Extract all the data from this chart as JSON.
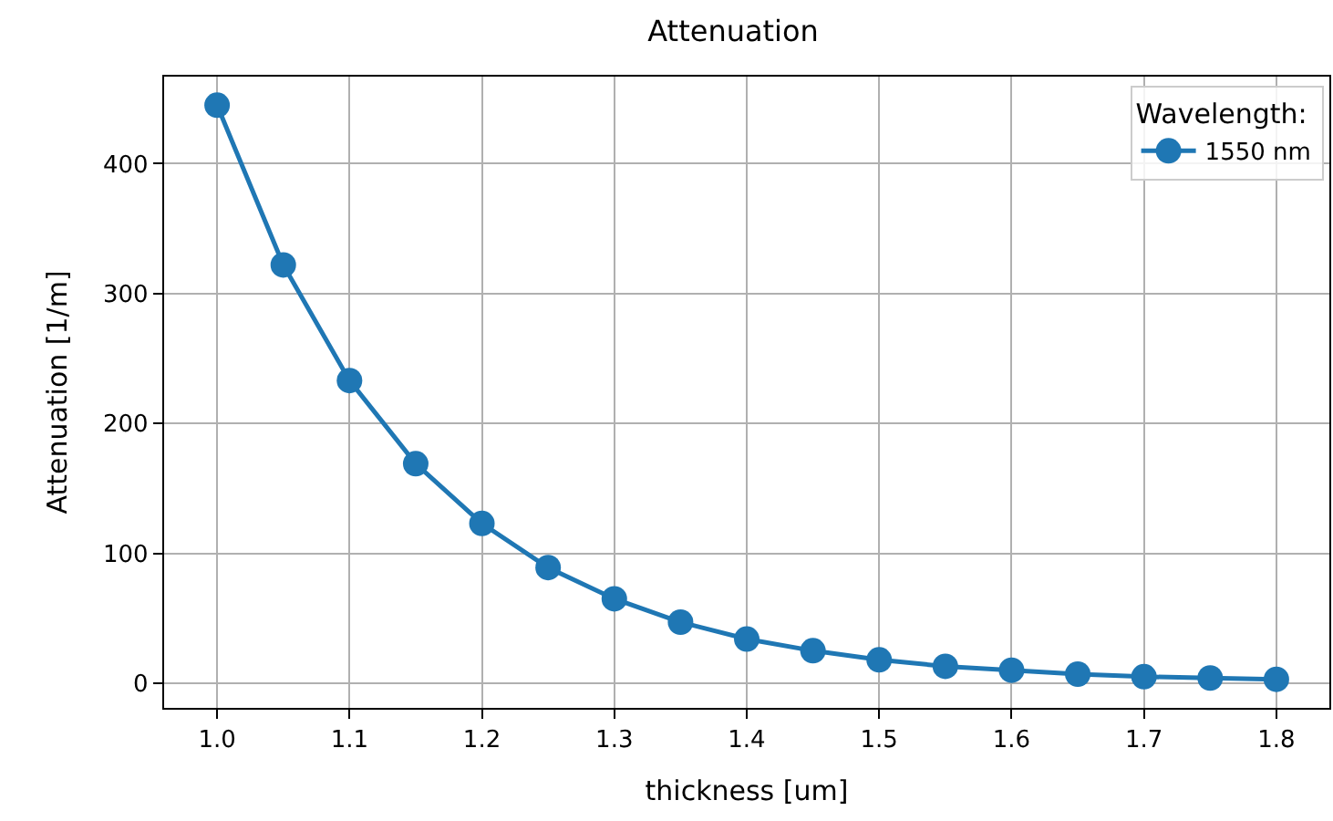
{
  "chart_data": {
    "type": "line",
    "title": "Attenuation",
    "xlabel": "thickness [um]",
    "ylabel": "Attenuation [1/m]",
    "legend_title": "Wavelength:",
    "x": [
      1.0,
      1.05,
      1.1,
      1.15,
      1.2,
      1.25,
      1.3,
      1.35,
      1.4,
      1.45,
      1.5,
      1.55,
      1.6,
      1.65,
      1.7,
      1.75,
      1.8
    ],
    "series": [
      {
        "name": "1550 nm",
        "color": "#1f77b4",
        "values": [
          445,
          322,
          233,
          169,
          123,
          89,
          65,
          47,
          34,
          25,
          18,
          13,
          10,
          7,
          5,
          4,
          3
        ]
      }
    ],
    "xlim": [
      0.96,
      1.84
    ],
    "xticks": [
      {
        "value": 1.0,
        "label": "1.0"
      },
      1.1,
      1.2,
      1.3,
      1.4,
      1.5,
      1.6,
      1.7,
      1.8
    ],
    "ylim": [
      -19,
      467
    ],
    "yticks": [
      0,
      100,
      200,
      300,
      400
    ],
    "grid": true,
    "legend": "top right",
    "marker": "circle",
    "line_style": "solid"
  }
}
